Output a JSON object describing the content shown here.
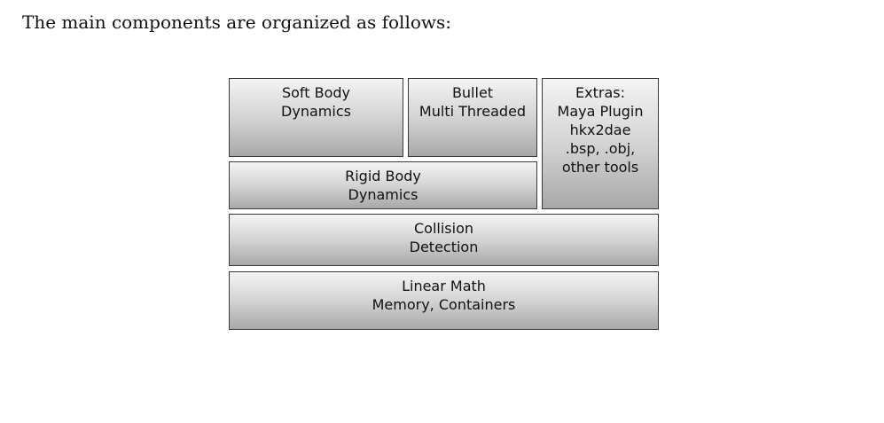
{
  "intro": "The main components are organized as follows:",
  "diagram": {
    "soft_body": {
      "line1": "Soft Body",
      "line2": "Dynamics"
    },
    "bullet_mt": {
      "line1": "Bullet",
      "line2": "Multi Threaded"
    },
    "extras": {
      "line1": "Extras:",
      "line2": "Maya Plugin",
      "line3": "hkx2dae",
      "line4": ".bsp, .obj,",
      "line5": "other tools"
    },
    "rigid_body": {
      "line1": "Rigid Body",
      "line2": "Dynamics"
    },
    "collision": {
      "line1": "Collision",
      "line2": "Detection"
    },
    "linear_math": {
      "line1": "Linear Math",
      "line2": "Memory, Containers"
    }
  }
}
